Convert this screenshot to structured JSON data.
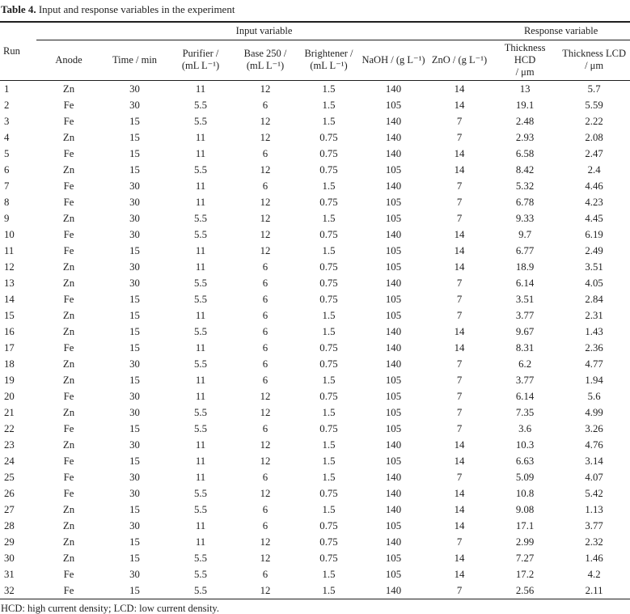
{
  "title": {
    "label": "Table 4.",
    "text": " Input and response variables in the experiment"
  },
  "table": {
    "run_header": "Run",
    "group_headers": {
      "input": "Input variable",
      "response": "Response variable"
    },
    "columns": [
      {
        "key": "anode",
        "lines": [
          "Anode"
        ]
      },
      {
        "key": "time",
        "lines": [
          "Time / min"
        ]
      },
      {
        "key": "purifier",
        "lines": [
          "Purifier /",
          "(mL L⁻¹)"
        ]
      },
      {
        "key": "base-250",
        "lines": [
          "Base 250 /",
          "(mL L⁻¹)"
        ]
      },
      {
        "key": "brightener",
        "lines": [
          "Brightener /",
          "(mL L⁻¹)"
        ]
      },
      {
        "key": "naoh",
        "lines": [
          "NaOH / (g L⁻¹)"
        ]
      },
      {
        "key": "zno",
        "lines": [
          "ZnO / (g L⁻¹)"
        ]
      },
      {
        "key": "thickness-hcd",
        "lines": [
          "Thickness HCD",
          "/ μm"
        ]
      },
      {
        "key": "thickness-lcd",
        "lines": [
          "Thickness LCD",
          "/ μm"
        ]
      }
    ],
    "rows": [
      [
        "1",
        "Zn",
        "30",
        "11",
        "12",
        "1.5",
        "140",
        "14",
        "13",
        "5.7"
      ],
      [
        "2",
        "Fe",
        "30",
        "5.5",
        "6",
        "1.5",
        "105",
        "14",
        "19.1",
        "5.59"
      ],
      [
        "3",
        "Fe",
        "15",
        "5.5",
        "12",
        "1.5",
        "140",
        "7",
        "2.48",
        "2.22"
      ],
      [
        "4",
        "Zn",
        "15",
        "11",
        "12",
        "0.75",
        "140",
        "7",
        "2.93",
        "2.08"
      ],
      [
        "5",
        "Fe",
        "15",
        "11",
        "6",
        "0.75",
        "140",
        "14",
        "6.58",
        "2.47"
      ],
      [
        "6",
        "Zn",
        "15",
        "5.5",
        "12",
        "0.75",
        "105",
        "14",
        "8.42",
        "2.4"
      ],
      [
        "7",
        "Fe",
        "30",
        "11",
        "6",
        "1.5",
        "140",
        "7",
        "5.32",
        "4.46"
      ],
      [
        "8",
        "Fe",
        "30",
        "11",
        "12",
        "0.75",
        "105",
        "7",
        "6.78",
        "4.23"
      ],
      [
        "9",
        "Zn",
        "30",
        "5.5",
        "12",
        "1.5",
        "105",
        "7",
        "9.33",
        "4.45"
      ],
      [
        "10",
        "Fe",
        "30",
        "5.5",
        "12",
        "0.75",
        "140",
        "14",
        "9.7",
        "6.19"
      ],
      [
        "11",
        "Fe",
        "15",
        "11",
        "12",
        "1.5",
        "105",
        "14",
        "6.77",
        "2.49"
      ],
      [
        "12",
        "Zn",
        "30",
        "11",
        "6",
        "0.75",
        "105",
        "14",
        "18.9",
        "3.51"
      ],
      [
        "13",
        "Zn",
        "30",
        "5.5",
        "6",
        "0.75",
        "140",
        "7",
        "6.14",
        "4.05"
      ],
      [
        "14",
        "Fe",
        "15",
        "5.5",
        "6",
        "0.75",
        "105",
        "7",
        "3.51",
        "2.84"
      ],
      [
        "15",
        "Zn",
        "15",
        "11",
        "6",
        "1.5",
        "105",
        "7",
        "3.77",
        "2.31"
      ],
      [
        "16",
        "Zn",
        "15",
        "5.5",
        "6",
        "1.5",
        "140",
        "14",
        "9.67",
        "1.43"
      ],
      [
        "17",
        "Fe",
        "15",
        "11",
        "6",
        "0.75",
        "140",
        "14",
        "8.31",
        "2.36"
      ],
      [
        "18",
        "Zn",
        "30",
        "5.5",
        "6",
        "0.75",
        "140",
        "7",
        "6.2",
        "4.77"
      ],
      [
        "19",
        "Zn",
        "15",
        "11",
        "6",
        "1.5",
        "105",
        "7",
        "3.77",
        "1.94"
      ],
      [
        "20",
        "Fe",
        "30",
        "11",
        "12",
        "0.75",
        "105",
        "7",
        "6.14",
        "5.6"
      ],
      [
        "21",
        "Zn",
        "30",
        "5.5",
        "12",
        "1.5",
        "105",
        "7",
        "7.35",
        "4.99"
      ],
      [
        "22",
        "Fe",
        "15",
        "5.5",
        "6",
        "0.75",
        "105",
        "7",
        "3.6",
        "3.26"
      ],
      [
        "23",
        "Zn",
        "30",
        "11",
        "12",
        "1.5",
        "140",
        "14",
        "10.3",
        "4.76"
      ],
      [
        "24",
        "Fe",
        "15",
        "11",
        "12",
        "1.5",
        "105",
        "14",
        "6.63",
        "3.14"
      ],
      [
        "25",
        "Fe",
        "30",
        "11",
        "6",
        "1.5",
        "140",
        "7",
        "5.09",
        "4.07"
      ],
      [
        "26",
        "Fe",
        "30",
        "5.5",
        "12",
        "0.75",
        "140",
        "14",
        "10.8",
        "5.42"
      ],
      [
        "27",
        "Zn",
        "15",
        "5.5",
        "6",
        "1.5",
        "140",
        "14",
        "9.08",
        "1.13"
      ],
      [
        "28",
        "Zn",
        "30",
        "11",
        "6",
        "0.75",
        "105",
        "14",
        "17.1",
        "3.77"
      ],
      [
        "29",
        "Zn",
        "15",
        "11",
        "12",
        "0.75",
        "140",
        "7",
        "2.99",
        "2.32"
      ],
      [
        "30",
        "Zn",
        "15",
        "5.5",
        "12",
        "0.75",
        "105",
        "14",
        "7.27",
        "1.46"
      ],
      [
        "31",
        "Fe",
        "30",
        "5.5",
        "6",
        "1.5",
        "105",
        "14",
        "17.2",
        "4.2"
      ],
      [
        "32",
        "Fe",
        "15",
        "5.5",
        "12",
        "1.5",
        "140",
        "7",
        "2.56",
        "2.11"
      ]
    ]
  },
  "footnote": "HCD: high current density; LCD: low current density."
}
